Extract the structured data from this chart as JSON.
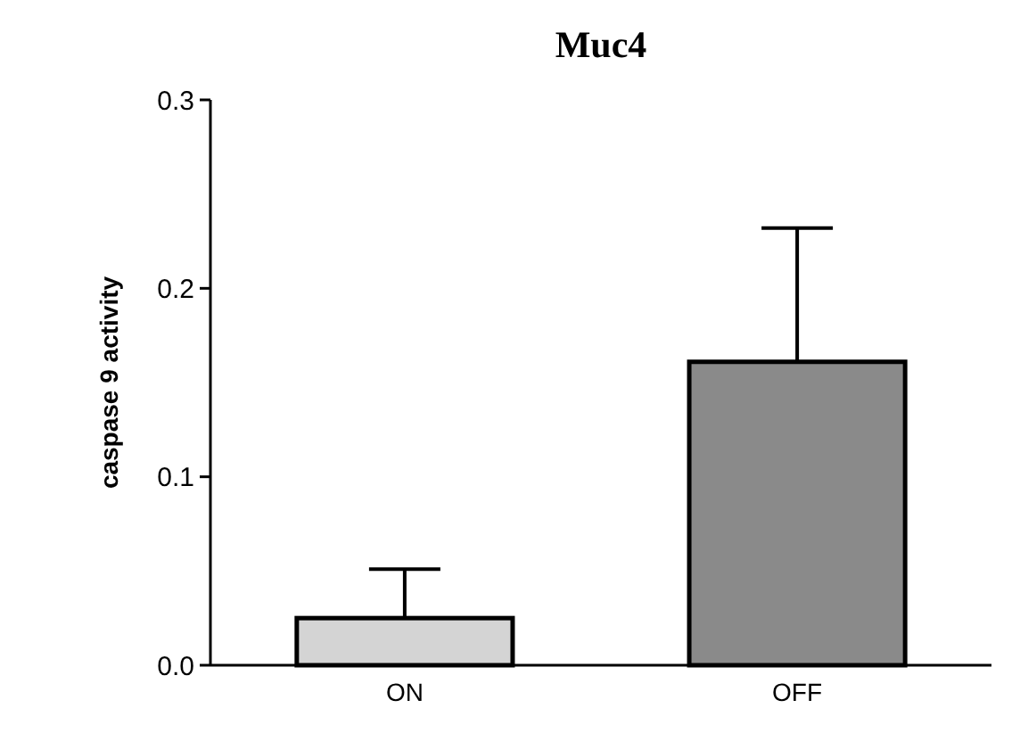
{
  "chart_data": {
    "type": "bar",
    "title": "Muc4",
    "ylabel": "caspase 9 activity",
    "categories": [
      "ON",
      "OFF"
    ],
    "values": [
      0.025,
      0.161
    ],
    "colors": [
      "#d4d4d4",
      "#8a8a8a"
    ],
    "errors": [
      [
        0.025,
        0.051
      ],
      [
        0.161,
        0.232
      ]
    ],
    "ylim": [
      0,
      0.3
    ],
    "yticks": [
      {
        "value": 0,
        "label": "0.0"
      },
      0.1,
      0.2,
      0.3
    ],
    "grid": false
  }
}
